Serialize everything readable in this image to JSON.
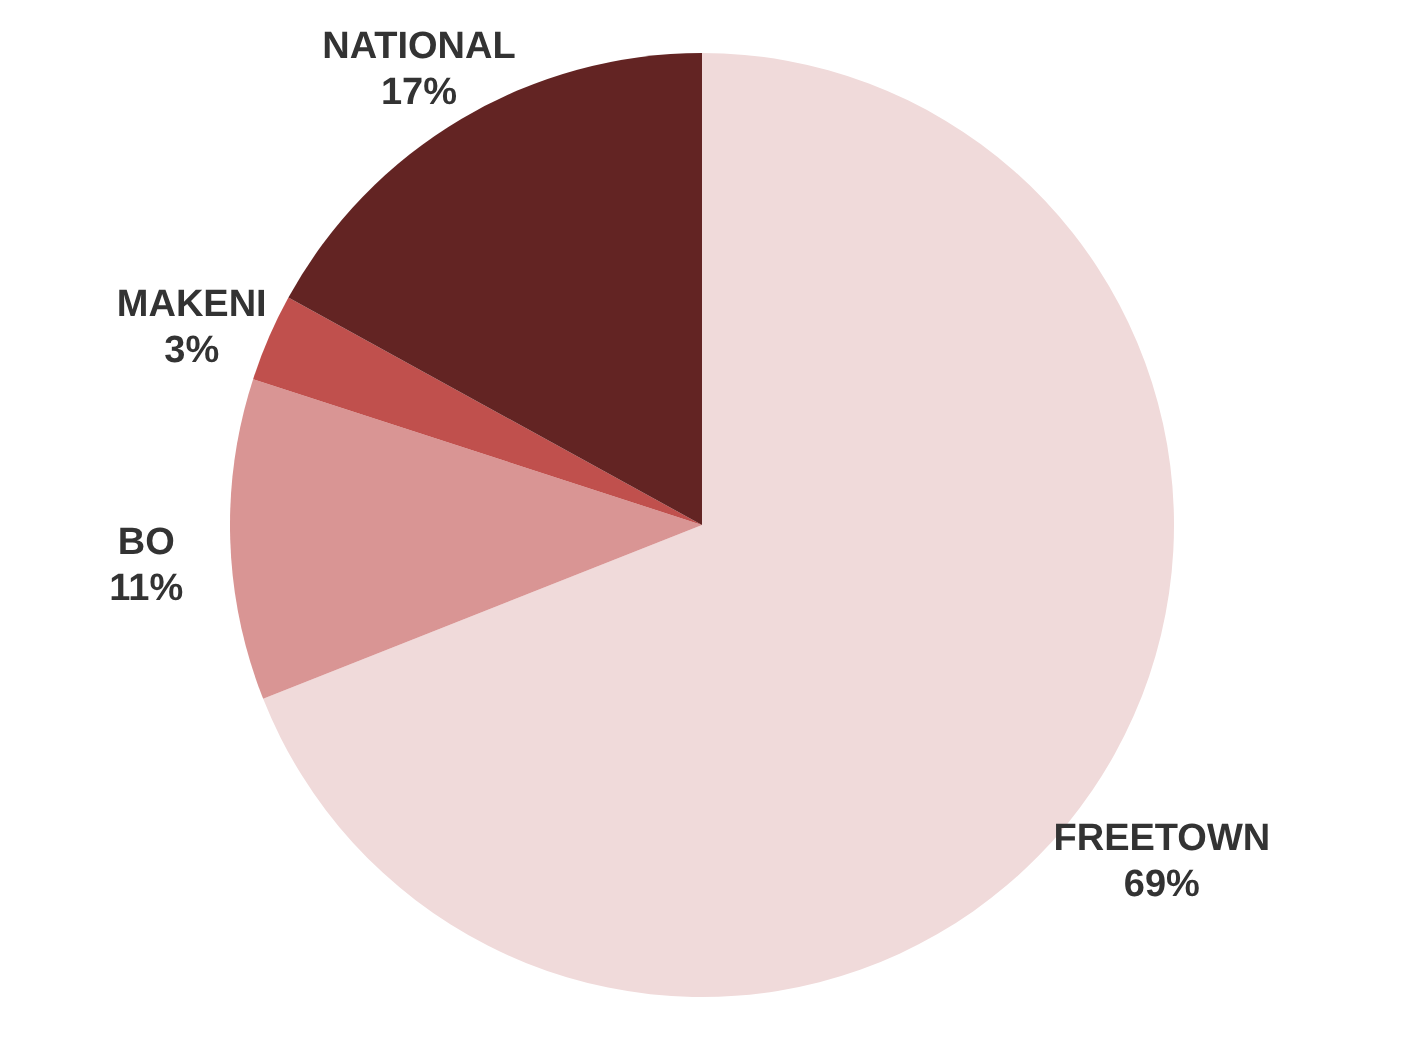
{
  "chart_data": {
    "type": "pie",
    "categories": [
      "FREETOWN",
      "BO",
      "MAKENI",
      "NATIONAL"
    ],
    "values": [
      69,
      11,
      3,
      17
    ],
    "colors": [
      "#f0dada",
      "#d99594",
      "#c0504d",
      "#632423"
    ],
    "value_labels": [
      "69%",
      "11%",
      "3%",
      "17%"
    ]
  }
}
